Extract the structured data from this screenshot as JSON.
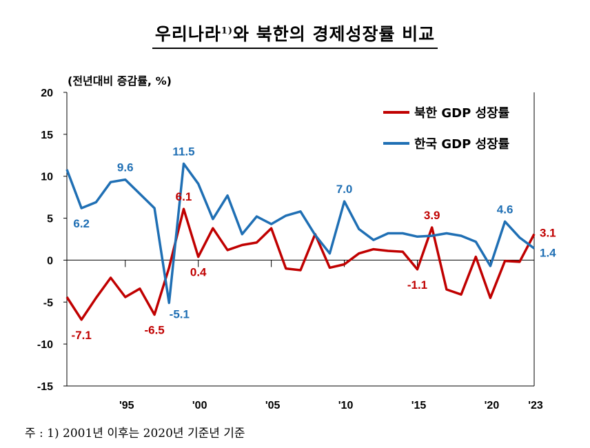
{
  "title": {
    "main": "우리나라",
    "sup": "1)",
    "rest": "와 북한의 경제성장률 비교"
  },
  "unit_label": "(전년대비 증감률, %)",
  "footnote": "주 : 1) 2001년 이후는 2020년 기준년 기준",
  "colors": {
    "north": "#c00000",
    "south": "#1f6fb4",
    "axis": "#000000"
  },
  "chart_data": {
    "type": "line",
    "x": [
      1991,
      1992,
      1993,
      1994,
      1995,
      1996,
      1997,
      1998,
      1999,
      2000,
      2001,
      2002,
      2003,
      2004,
      2005,
      2006,
      2007,
      2008,
      2009,
      2010,
      2011,
      2012,
      2013,
      2014,
      2015,
      2016,
      2017,
      2018,
      2019,
      2020,
      2021,
      2022,
      2023
    ],
    "x_tick_labels": [
      {
        "x": 1995,
        "label": "'95"
      },
      {
        "x": 2000,
        "label": "'00"
      },
      {
        "x": 2005,
        "label": "'05"
      },
      {
        "x": 2010,
        "label": "'10"
      },
      {
        "x": 2015,
        "label": "'15"
      },
      {
        "x": 2020,
        "label": "'20"
      },
      {
        "x": 2023,
        "label": "'23"
      }
    ],
    "x_minor_ticks": [
      1991,
      1992,
      1993,
      1994,
      1995,
      1996,
      1997,
      1998,
      1999,
      2000,
      2001,
      2002,
      2003,
      2004,
      2005,
      2006,
      2007,
      2008,
      2009,
      2010,
      2011,
      2012,
      2013,
      2014,
      2015,
      2016,
      2017,
      2018,
      2019,
      2020,
      2021,
      2022,
      2023
    ],
    "xlim": [
      1991,
      2023
    ],
    "ylim": [
      -15,
      20
    ],
    "y_ticks": [
      -15,
      -10,
      -5,
      0,
      5,
      10,
      15,
      20
    ],
    "series": [
      {
        "name": "북한 GDP 성장률",
        "key": "north",
        "values": [
          -4.4,
          -7.1,
          -4.5,
          -2.1,
          -4.4,
          -3.4,
          -6.5,
          -0.9,
          6.1,
          0.4,
          3.8,
          1.2,
          1.8,
          2.1,
          3.8,
          -1.0,
          -1.2,
          3.1,
          -0.9,
          -0.5,
          0.8,
          1.3,
          1.1,
          1.0,
          -1.1,
          3.9,
          -3.5,
          -4.1,
          0.4,
          -4.5,
          -0.1,
          -0.2,
          3.1
        ],
        "labels": [
          {
            "x": 1992,
            "text": "-7.1",
            "pos": "below"
          },
          {
            "x": 1997,
            "text": "-6.5",
            "pos": "below"
          },
          {
            "x": 1999,
            "text": "6.1",
            "pos": "above"
          },
          {
            "x": 2000,
            "text": "0.4",
            "pos": "below"
          },
          {
            "x": 2015,
            "text": "-1.1",
            "pos": "below"
          },
          {
            "x": 2016,
            "text": "3.9",
            "pos": "above"
          },
          {
            "x": 2023,
            "text": "3.1",
            "pos": "right"
          }
        ]
      },
      {
        "name": "한국 GDP 성장률",
        "key": "south",
        "values": [
          10.8,
          6.2,
          6.9,
          9.3,
          9.6,
          7.9,
          6.2,
          -5.1,
          11.5,
          9.1,
          4.9,
          7.7,
          3.1,
          5.2,
          4.3,
          5.3,
          5.8,
          3.0,
          0.8,
          7.0,
          3.7,
          2.4,
          3.2,
          3.2,
          2.8,
          2.9,
          3.2,
          2.9,
          2.2,
          -0.7,
          4.6,
          2.7,
          1.4
        ],
        "labels": [
          {
            "x": 1992,
            "text": "6.2",
            "pos": "below"
          },
          {
            "x": 1995,
            "text": "9.6",
            "pos": "above"
          },
          {
            "x": 1998,
            "text": "-5.1",
            "pos": "below-right"
          },
          {
            "x": 1999,
            "text": "11.5",
            "pos": "above"
          },
          {
            "x": 2010,
            "text": "7.0",
            "pos": "above"
          },
          {
            "x": 2021,
            "text": "4.6",
            "pos": "above"
          },
          {
            "x": 2023,
            "text": "1.4",
            "pos": "right"
          }
        ]
      }
    ],
    "legend": {
      "placement": "top-right",
      "entries": [
        "북한 GDP 성장률",
        "한국 GDP 성장률"
      ]
    },
    "grid": false
  }
}
